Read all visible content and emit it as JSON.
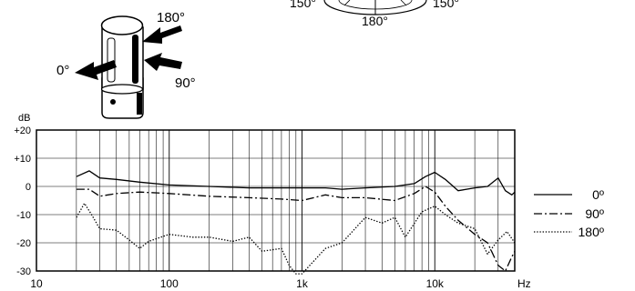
{
  "polar_labels": {
    "top_left": "150°",
    "bottom": "180°",
    "top_right": "150°"
  },
  "mic_diagram": {
    "label_0": "0°",
    "label_90": "90°",
    "label_180": "180°"
  },
  "chart_data": {
    "type": "line",
    "title": "",
    "xlabel": "Hz",
    "ylabel": "dB",
    "x_scale": "log",
    "xlim": [
      10,
      40000
    ],
    "ylim": [
      -30,
      20
    ],
    "x_ticks": [
      {
        "value": 10,
        "label": "10"
      },
      {
        "value": 100,
        "label": "100"
      },
      {
        "value": 1000,
        "label": "1k"
      },
      {
        "value": 10000,
        "label": "10k"
      }
    ],
    "y_ticks": [
      {
        "value": 20,
        "label": "+20"
      },
      {
        "value": 10,
        "label": "+10"
      },
      {
        "value": 0,
        "label": "0"
      },
      {
        "value": -10,
        "label": "-10"
      },
      {
        "value": -20,
        "label": "-20"
      },
      {
        "value": -30,
        "label": "-30"
      }
    ],
    "grid": true,
    "legend_position": "right",
    "series": [
      {
        "name": "0º",
        "style": "solid",
        "x": [
          20,
          25,
          30,
          40,
          60,
          100,
          200,
          400,
          700,
          1000,
          1500,
          2000,
          3000,
          5000,
          7000,
          8500,
          10000,
          12000,
          15000,
          20000,
          25000,
          30000,
          34000,
          38000,
          40000
        ],
        "y": [
          3.5,
          5.5,
          3,
          2.5,
          1.5,
          0.5,
          0,
          -0.5,
          -0.5,
          -0.5,
          -0.5,
          -1,
          -0.5,
          0,
          1,
          3.5,
          5,
          2.5,
          -1.5,
          -0.5,
          0,
          3,
          -1.5,
          -3,
          -2
        ]
      },
      {
        "name": "90º",
        "style": "dash-dot",
        "x": [
          20,
          25,
          30,
          40,
          60,
          100,
          200,
          400,
          700,
          1000,
          1500,
          2000,
          3000,
          5000,
          7000,
          8500,
          10000,
          12000,
          15000,
          20000,
          25000,
          30000,
          34000,
          38000,
          40000
        ],
        "y": [
          -1,
          -1,
          -3.5,
          -2.5,
          -2,
          -2.5,
          -3.5,
          -4,
          -4.5,
          -5,
          -3,
          -4,
          -4,
          -5,
          -2.5,
          0,
          -2,
          -7,
          -12,
          -17,
          -20,
          -28,
          -30,
          -25,
          -23
        ]
      },
      {
        "name": "180º",
        "style": "dotted",
        "x": [
          20,
          23,
          26,
          30,
          40,
          50,
          60,
          70,
          100,
          150,
          200,
          300,
          400,
          500,
          700,
          800,
          900,
          1000,
          1500,
          2000,
          3000,
          4000,
          5000,
          6000,
          8000,
          10000,
          12000,
          15000,
          20000,
          25000,
          30000,
          35000,
          40000
        ],
        "y": [
          -11,
          -6,
          -10,
          -15,
          -15.5,
          -19,
          -22,
          -19.5,
          -17,
          -18,
          -18,
          -19.5,
          -18,
          -23,
          -22,
          -28,
          -31,
          -31,
          -22,
          -20,
          -11,
          -13,
          -11,
          -18,
          -9,
          -7,
          -10,
          -13,
          -15,
          -24,
          -19,
          -16,
          -20
        ]
      }
    ]
  }
}
